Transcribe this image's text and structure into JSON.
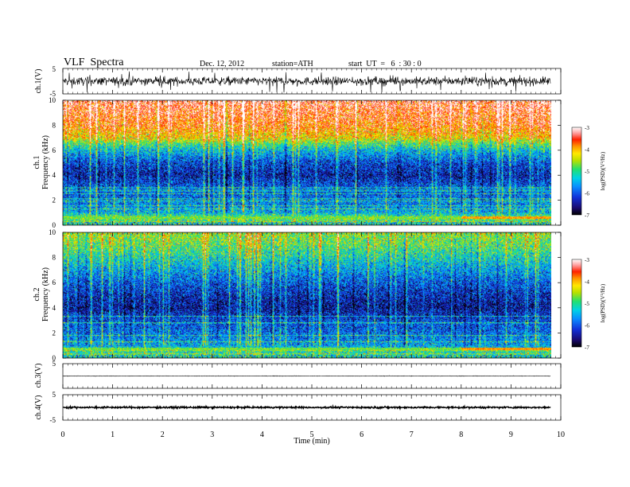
{
  "header": {
    "title": "VLF  Spectra",
    "date": "Dec. 12, 2012",
    "station": "station=ATH",
    "start": "start  UT  =   6  : 30 : 0"
  },
  "chart_data": [
    {
      "type": "line",
      "panel": "ch1-waveform",
      "ylabel": "ch.1(V)",
      "ylim": [
        -5,
        5
      ],
      "y_ticks": [
        "5",
        "-5"
      ],
      "xlim": [
        0,
        10
      ],
      "data_end_min": 9.8,
      "description_values": {
        "baseline_V": 0,
        "typical_amplitude_V": 1.5,
        "max_spike_V": 4.5
      }
    },
    {
      "type": "heatmap",
      "panel": "ch1-spectrogram",
      "ylabel_top": "ch.1",
      "ylabel": "Frequency  (kHz)",
      "ylim": [
        0,
        10
      ],
      "y_ticks": [
        "0",
        "2",
        "4",
        "6",
        "8",
        "10"
      ],
      "xlim": [
        0,
        10
      ],
      "data_end_min": 9.8,
      "colorbar": {
        "label": "log(PSD)(V²/Hz)",
        "range": [
          -7,
          -3
        ],
        "ticks": [
          "-3",
          "-4",
          "-5",
          "-6",
          "-7"
        ]
      },
      "profile_khz_logpsd": [
        [
          0,
          -5.6
        ],
        [
          0.5,
          -4.6
        ],
        [
          1.0,
          -5.5
        ],
        [
          2.0,
          -5.9
        ],
        [
          3.0,
          -6.0
        ],
        [
          4.0,
          -6.4
        ],
        [
          5.0,
          -6.1
        ],
        [
          6.0,
          -5.4
        ],
        [
          6.5,
          -4.9
        ],
        [
          7.0,
          -4.2
        ],
        [
          8.0,
          -3.7
        ],
        [
          10.0,
          -3.3
        ]
      ],
      "bright_line_khz": 0.55,
      "bright_line_from_min": 8.0
    },
    {
      "type": "heatmap",
      "panel": "ch2-spectrogram",
      "ylabel_top": "ch.2",
      "ylabel": "Frequency  (kHz)",
      "ylim": [
        0,
        10
      ],
      "y_ticks": [
        "0",
        "2",
        "4",
        "6",
        "8",
        "10"
      ],
      "xlim": [
        0,
        10
      ],
      "data_end_min": 9.8,
      "colorbar": {
        "label": "log(PSD)(V²/Hz)",
        "range": [
          -7,
          -3
        ],
        "ticks": [
          "-3",
          "-4",
          "-5",
          "-6",
          "-7"
        ]
      },
      "profile_khz_logpsd": [
        [
          0,
          -5.6
        ],
        [
          0.5,
          -5.0
        ],
        [
          1.0,
          -5.6
        ],
        [
          2.0,
          -5.9
        ],
        [
          3.0,
          -6.1
        ],
        [
          4.0,
          -6.5
        ],
        [
          5.0,
          -6.3
        ],
        [
          6.0,
          -6.0
        ],
        [
          7.0,
          -5.6
        ],
        [
          8.0,
          -5.2
        ],
        [
          9.0,
          -4.8
        ],
        [
          10.0,
          -4.6
        ]
      ],
      "bright_line_khz": 0.7,
      "bright_line_from_min": 8.0
    },
    {
      "type": "line",
      "panel": "ch3-waveform",
      "ylabel": "ch.3(V)",
      "ylim": [
        -5,
        5
      ],
      "y_ticks": [
        "5"
      ],
      "xlim": [
        0,
        10
      ],
      "data_end_min": 9.8,
      "description_values": {
        "baseline_V": 0,
        "typical_amplitude_V": 0.1
      }
    },
    {
      "type": "line",
      "panel": "ch4-waveform",
      "ylabel": "ch.4(V)",
      "ylim": [
        -5,
        5
      ],
      "y_ticks": [
        "5",
        "-5"
      ],
      "xlim": [
        0,
        10
      ],
      "data_end_min": 9.8,
      "description_values": {
        "baseline_V": 0,
        "typical_amplitude_V": 0.3
      }
    }
  ],
  "x_axis": {
    "label": "Time  (min)",
    "ticks": [
      "0",
      "1",
      "2",
      "3",
      "4",
      "5",
      "6",
      "7",
      "8",
      "9",
      "10"
    ],
    "range": [
      0,
      10
    ]
  }
}
